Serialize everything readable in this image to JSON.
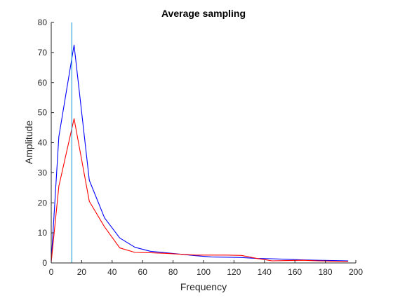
{
  "chart_data": {
    "type": "line",
    "title": "Average sampling",
    "xlabel": "Frequency",
    "ylabel": "Amplitude",
    "xlim": [
      0,
      200
    ],
    "ylim": [
      0,
      80
    ],
    "xticks": [
      0,
      20,
      40,
      60,
      80,
      100,
      120,
      140,
      160,
      180,
      200
    ],
    "yticks": [
      0,
      10,
      20,
      30,
      40,
      50,
      60,
      70,
      80
    ],
    "grid": false,
    "legend": "none",
    "series": [
      {
        "color": "#0000ff",
        "x": [
          0,
          5,
          15,
          25,
          35,
          45,
          55,
          65,
          75,
          85,
          95,
          105,
          115,
          125,
          135,
          145,
          155,
          165,
          175,
          185,
          195
        ],
        "y": [
          0.5,
          42,
          72.5,
          27.5,
          15,
          8.3,
          5.2,
          3.9,
          3.4,
          2.9,
          2.4,
          2.0,
          1.9,
          1.8,
          1.5,
          1.4,
          1.2,
          1.0,
          0.9,
          0.8,
          0.7
        ]
      },
      {
        "color": "#ff0000",
        "x": [
          0,
          5,
          15,
          25,
          35,
          45,
          55,
          65,
          75,
          85,
          95,
          105,
          115,
          125,
          135,
          145,
          155,
          165,
          175,
          185,
          195
        ],
        "y": [
          0.3,
          25.5,
          48,
          20.5,
          12,
          5.0,
          3.5,
          3.4,
          3.2,
          2.9,
          2.6,
          2.6,
          2.6,
          2.5,
          1.5,
          0.7,
          0.8,
          0.9,
          0.7,
          0.6,
          0.5
        ]
      }
    ],
    "annotations": [
      {
        "kind": "vertical-line",
        "x": 13.5,
        "color": "#1e9fd8"
      }
    ]
  }
}
